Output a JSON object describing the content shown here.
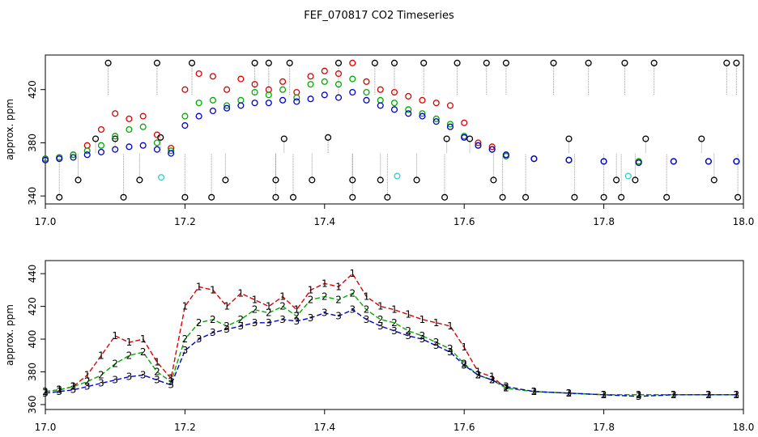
{
  "chart_data": {
    "title": "FEF_070817  CO2 Timeseries",
    "charts": [
      {
        "type": "scatter",
        "ylabel": "approx. ppm",
        "xlim": [
          17.0,
          18.0
        ],
        "ylim": [
          334,
          446
        ],
        "xticks": [
          "17.0",
          "17.2",
          "17.4",
          "17.6",
          "17.8",
          "18.0"
        ],
        "yticks": [
          "340",
          "380",
          "420"
        ],
        "xtick_values": [
          17.0,
          17.2,
          17.4,
          17.6,
          17.8,
          18.0
        ],
        "ytick_values": [
          340,
          380,
          420
        ],
        "series_colors": {
          "s1": "#dd0000",
          "s2": "#00aa00",
          "s3": "#0000cc",
          "black": "#000000",
          "cyan": "#33cccc",
          "drop": "#999999"
        },
        "black_points": {
          "x": [
            17.02,
            17.047,
            17.072,
            17.09,
            17.1,
            17.112,
            17.135,
            17.16,
            17.165,
            17.2,
            17.21,
            17.238,
            17.258,
            17.3,
            17.32,
            17.33,
            17.33,
            17.342,
            17.35,
            17.355,
            17.382,
            17.405,
            17.42,
            17.44,
            17.44,
            17.472,
            17.48,
            17.49,
            17.5,
            17.532,
            17.542,
            17.572,
            17.575,
            17.59,
            17.608,
            17.632,
            17.642,
            17.655,
            17.66,
            17.688,
            17.728,
            17.75,
            17.758,
            17.778,
            17.8,
            17.818,
            17.825,
            17.83,
            17.845,
            17.86,
            17.872,
            17.89,
            17.94,
            17.958,
            17.976,
            17.99,
            17.992
          ],
          "y": [
            339,
            352,
            383,
            440,
            383,
            339,
            352,
            440,
            384,
            339,
            440,
            339,
            352,
            440,
            440,
            352,
            339,
            383,
            440,
            339,
            352,
            384,
            440,
            339,
            352,
            440,
            352,
            339,
            440,
            352,
            440,
            339,
            383,
            440,
            383,
            440,
            352,
            339,
            440,
            339,
            440,
            383,
            339,
            440,
            339,
            352,
            339,
            440,
            352,
            383,
            440,
            339,
            383,
            352,
            440,
            440,
            339
          ]
        },
        "cyan_points": {
          "x": [
            17.166,
            17.504,
            17.835
          ],
          "y": [
            354,
            355,
            355
          ]
        }
      },
      {
        "type": "line",
        "ylabel": "approx. ppm",
        "xlim": [
          17.0,
          18.0
        ],
        "ylim": [
          357,
          448
        ],
        "xticks": [
          "17.0",
          "17.2",
          "17.4",
          "17.6",
          "17.8",
          "18.0"
        ],
        "yticks": [
          "360",
          "380",
          "400",
          "420",
          "440"
        ],
        "xtick_values": [
          17.0,
          17.2,
          17.4,
          17.6,
          17.8,
          18.0
        ],
        "ytick_values": [
          360,
          380,
          400,
          420,
          440
        ],
        "series_markers": [
          "1",
          "2",
          "3"
        ],
        "series_colors": {
          "s1": "#dd0000",
          "s2": "#00aa00",
          "s3": "#0000cc"
        }
      }
    ],
    "shared_series": {
      "x": [
        17.0,
        17.02,
        17.04,
        17.06,
        17.08,
        17.1,
        17.12,
        17.14,
        17.16,
        17.18,
        17.2,
        17.22,
        17.24,
        17.26,
        17.28,
        17.3,
        17.32,
        17.34,
        17.36,
        17.38,
        17.4,
        17.42,
        17.44,
        17.46,
        17.48,
        17.5,
        17.52,
        17.54,
        17.56,
        17.58,
        17.6,
        17.62,
        17.64,
        17.66,
        17.7,
        17.75,
        17.8,
        17.85,
        17.9,
        17.95,
        17.99
      ],
      "s1": [
        368,
        369,
        371,
        378,
        390,
        402,
        398,
        400,
        386,
        376,
        420,
        432,
        430,
        420,
        428,
        424,
        420,
        426,
        418,
        430,
        434,
        432,
        440,
        426,
        420,
        418,
        415,
        412,
        410,
        408,
        395,
        380,
        377,
        370,
        368,
        367,
        366,
        366,
        366,
        366,
        366
      ],
      "s2": [
        368,
        369,
        371,
        374,
        378,
        385,
        390,
        392,
        380,
        374,
        400,
        410,
        412,
        408,
        412,
        418,
        416,
        420,
        414,
        424,
        426,
        424,
        428,
        418,
        412,
        410,
        405,
        402,
        398,
        394,
        385,
        378,
        375,
        370,
        368,
        367,
        366,
        366,
        366,
        366,
        366
      ],
      "s3": [
        367,
        368,
        369,
        371,
        373,
        375,
        377,
        378,
        375,
        372,
        393,
        400,
        404,
        406,
        408,
        410,
        410,
        412,
        411,
        413,
        416,
        414,
        418,
        412,
        408,
        405,
        402,
        400,
        396,
        392,
        384,
        378,
        375,
        371,
        368,
        367,
        366,
        365,
        366,
        366,
        366
      ]
    }
  }
}
